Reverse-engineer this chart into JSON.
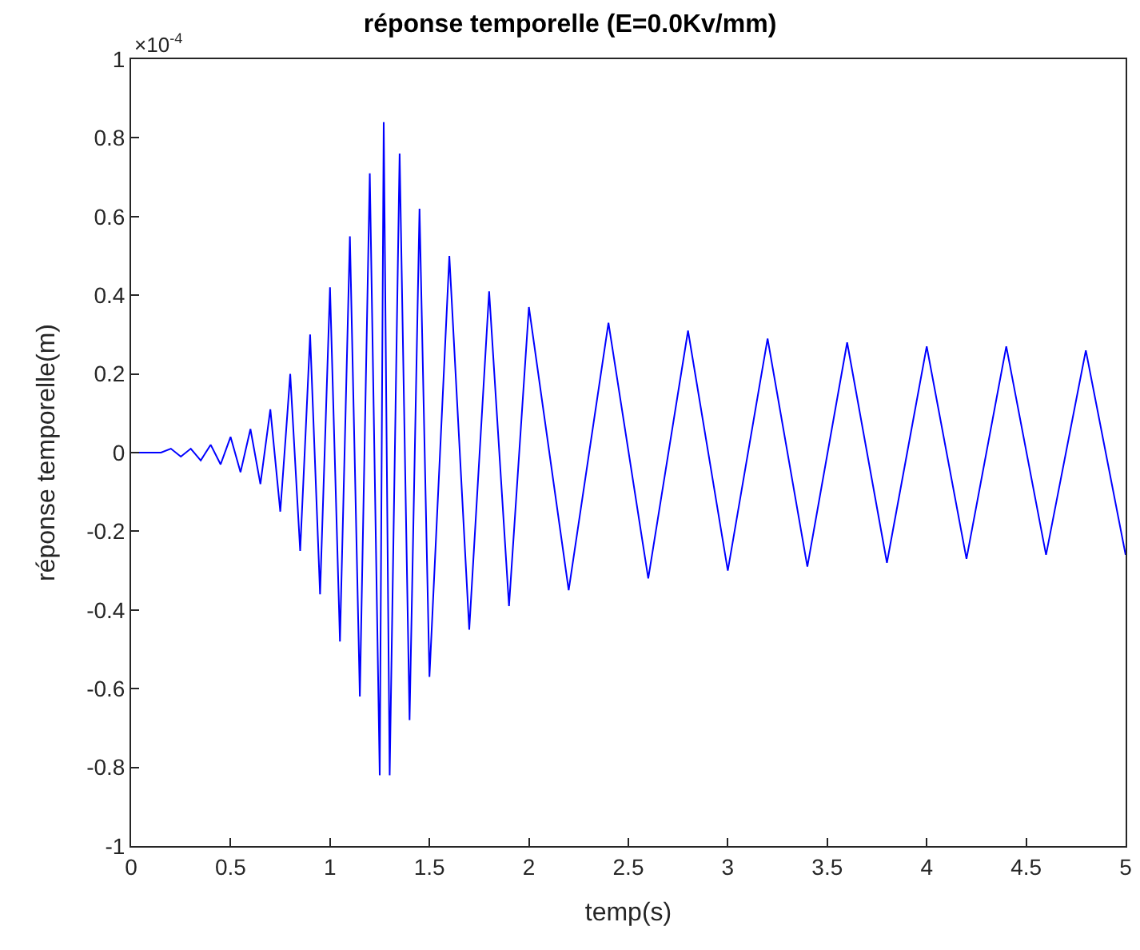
{
  "chart_data": {
    "type": "line",
    "title": "réponse temporelle (E=0.0Kv/mm)",
    "xlabel": "temp(s)",
    "ylabel": "réponse temporelle(m)",
    "annotations": [
      "×10$^{-4}$"
    ],
    "xlim": [
      0,
      5
    ],
    "xticks": [
      0,
      0.5,
      1,
      1.5,
      2,
      2.5,
      3,
      3.5,
      4,
      4.5,
      5
    ],
    "ylim": [
      -1,
      1
    ],
    "yticks": [
      -1,
      -0.8,
      -0.6,
      -0.4,
      -0.2,
      0,
      0.2,
      0.4,
      0.6,
      0.8,
      1
    ],
    "marker": "none",
    "line_style": "solid",
    "series": [
      {
        "color": "#0000ff",
        "x": [
          0,
          0.1,
          0.15,
          0.2,
          0.25,
          0.3,
          0.35,
          0.4,
          0.45,
          0.5,
          0.55,
          0.6,
          0.65,
          0.7,
          0.75,
          0.8,
          0.85,
          0.9,
          0.95,
          1.0,
          1.05,
          1.1,
          1.15,
          1.2,
          1.25,
          1.27,
          1.3,
          1.35,
          1.4,
          1.45,
          1.5,
          1.6,
          1.7,
          1.8,
          1.9,
          2.0,
          2.2,
          2.4,
          2.6,
          2.8,
          3.0,
          3.2,
          3.4,
          3.6,
          3.8,
          4.0,
          4.2,
          4.4,
          4.6,
          4.8,
          5.0
        ],
        "values": [
          0,
          0,
          0,
          0.01,
          -0.01,
          0.01,
          -0.02,
          0.02,
          -0.03,
          0.04,
          -0.05,
          0.06,
          -0.08,
          0.11,
          -0.15,
          0.2,
          -0.25,
          0.3,
          -0.36,
          0.42,
          -0.48,
          0.55,
          -0.62,
          0.71,
          -0.82,
          0.84,
          -0.82,
          0.76,
          -0.68,
          0.62,
          -0.57,
          0.5,
          -0.45,
          0.41,
          -0.39,
          0.37,
          -0.35,
          0.33,
          -0.32,
          0.31,
          -0.3,
          0.29,
          -0.29,
          0.28,
          -0.28,
          0.27,
          -0.27,
          0.27,
          -0.26,
          0.26,
          -0.26
        ]
      }
    ]
  }
}
